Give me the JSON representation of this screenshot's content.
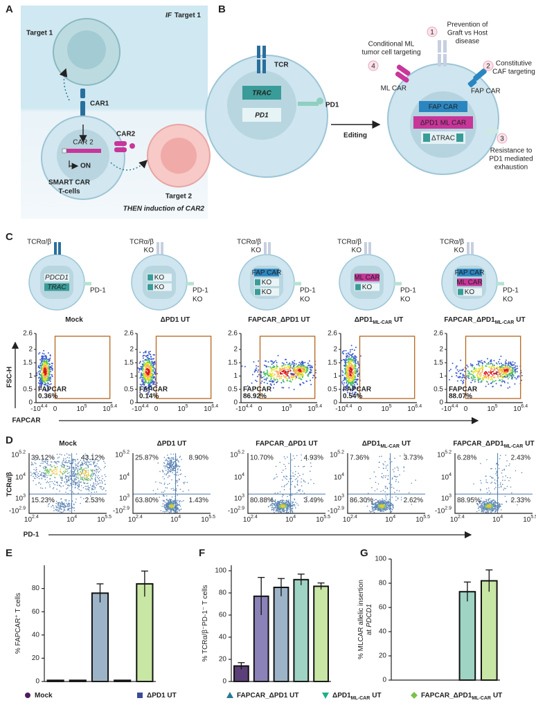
{
  "panel_labels": [
    "A",
    "B",
    "C",
    "D",
    "E",
    "F",
    "G"
  ],
  "groups": [
    {
      "pre": "Mock"
    },
    {
      "pre": "ΔPD1 UT"
    },
    {
      "pre": "FAPCAR_ΔPD1 UT"
    },
    {
      "pre": "ΔPD1",
      "sub": "ML-CAR",
      "post": "UT"
    },
    {
      "pre": "FAPCAR_ΔPD1",
      "sub": "ML-CAR",
      "post": "UT"
    }
  ],
  "group_colors": [
    "#4a1e5a",
    "#3b4a9a",
    "#2a7a96",
    "#1fae8a",
    "#7cc04a"
  ],
  "bar_colors": [
    "#5b3f78",
    "#8b82b8",
    "#9db4c8",
    "#9fd3c3",
    "#c8e6a4"
  ],
  "panel_a": {
    "title_if": "IF",
    "title_rest": "Target 1",
    "target1": "Target 1",
    "car1": "CAR1",
    "car2_gene": "CAR 2",
    "on": "ON",
    "car2": "CAR2",
    "smart": [
      "SMART CAR",
      "T-cells"
    ],
    "target2": "Target 2",
    "then": "THEN induction of CAR2"
  },
  "panel_b": {
    "tcr": "TCR",
    "trac": "TRAC",
    "pd1_gene": "PD1",
    "pd1": "PD1",
    "editing": "Editing",
    "ml_car": "ML CAR",
    "fap_car": "FAP CAR",
    "fap_car_gene": "FAP CAR",
    "ml_car_gene": "ΔPD1 ML CAR",
    "dtrac": "ΔTRAC",
    "features": [
      {
        "n": 1,
        "lines": [
          "Prevention of",
          "Graft vs Host",
          "disease"
        ]
      },
      {
        "n": 2,
        "lines": [
          "Constitutive",
          "CAF targeting"
        ]
      },
      {
        "n": 3,
        "lines": [
          "Resistance to",
          "PD1 mediated",
          "exhaustion"
        ]
      },
      {
        "n": 4,
        "lines": [
          "Conditional ML",
          "tumor cell targeting"
        ]
      }
    ]
  },
  "panel_c": {
    "cells": [
      {
        "top": [
          "TCRα/β"
        ],
        "inner": [
          "PDCD1",
          "TRAC"
        ],
        "side": [
          "PD-1"
        ]
      },
      {
        "top": [
          "TCRα/β",
          "KO"
        ],
        "inner": [
          "KO",
          "KO"
        ],
        "side": [
          "PD-1",
          "KO"
        ]
      },
      {
        "top": [
          "TCRα/β",
          "KO"
        ],
        "inner": [
          "FAP CAR",
          "KO",
          "KO"
        ],
        "side": [
          "PD-1",
          "KO"
        ]
      },
      {
        "top": [
          "TCRα/β",
          "KO"
        ],
        "inner": [
          "ML CAR",
          "KO"
        ],
        "side": [
          "PD-1",
          "KO"
        ]
      },
      {
        "top": [
          "TCRα/β",
          "KO"
        ],
        "inner": [
          "FAP CAR",
          "ML CAR",
          "KO"
        ],
        "side": [
          "PD-1",
          "KO"
        ]
      }
    ],
    "gate_label": "FAPCAR",
    "gate_pct": [
      "0.36%",
      "0.14%",
      "86.92%",
      "0.54%",
      "88.07%"
    ],
    "ylabel": "FSC-H",
    "xlabel": "FAPCAR",
    "ylim": [
      0,
      2.6
    ],
    "yticks": [
      0,
      0.5,
      1,
      1.5,
      2,
      2.6
    ],
    "xticks": [
      {
        "base": "-10",
        "exp": "4.4"
      },
      {
        "base": "0"
      },
      {
        "base": "10",
        "exp": "5"
      },
      {
        "base": "10",
        "exp": "6.4"
      }
    ]
  },
  "panel_d": {
    "ylabel": "TCRα/β",
    "xlabel": "PD-1",
    "quadrants": [
      [
        "39.12%",
        "43.12%",
        "15.23%",
        "2.53%"
      ],
      [
        "25.87%",
        "8.90%",
        "63.80%",
        "1.43%"
      ],
      [
        "10.70%",
        "4.93%",
        "80.88%",
        "3.49%"
      ],
      [
        "7.36%",
        "3.73%",
        "86.30%",
        "2.62%"
      ],
      [
        "6.28%",
        "2.43%",
        "88.95%",
        "2.33%"
      ]
    ],
    "yticks": [
      {
        "base": "-10",
        "exp": "2.9"
      },
      {
        "base": "10",
        "exp": "3"
      },
      {
        "base": "10",
        "exp": "4"
      },
      {
        "base": "10",
        "exp": "5.2"
      }
    ],
    "xticks": [
      {
        "base": "10",
        "exp": "2.4"
      },
      {
        "base": "10",
        "exp": "4"
      },
      {
        "base": "10",
        "exp": "5.5"
      }
    ]
  },
  "chart_data": [
    {
      "type": "bar",
      "ylabel": [
        "% FAPCAR⁺ T cells"
      ],
      "values": [
        1,
        1,
        76,
        1,
        84
      ],
      "errors": [
        0,
        0,
        8,
        0,
        11
      ],
      "ylim": [
        0,
        100
      ],
      "yticks": [
        0,
        20,
        40,
        60,
        80
      ]
    },
    {
      "type": "bar",
      "ylabel": [
        "% TCRα/β⁻PD-1⁻ T cells"
      ],
      "values": [
        14,
        77,
        85,
        92,
        86
      ],
      "errors": [
        3,
        17,
        8,
        5,
        3
      ],
      "ylim": [
        0,
        105
      ],
      "yticks": [
        0,
        20,
        40,
        60,
        80,
        100
      ]
    },
    {
      "type": "bar",
      "ylabel": [
        "% MLCAR allelic insertion",
        "at"
      ],
      "ylabel_italic": "PDCD1",
      "values": [
        0,
        0,
        0,
        73,
        82
      ],
      "errors": [
        0,
        0,
        0,
        8,
        9
      ],
      "ylim": [
        0,
        100
      ],
      "yticks": [
        0,
        20,
        40,
        60,
        80,
        100
      ]
    }
  ]
}
